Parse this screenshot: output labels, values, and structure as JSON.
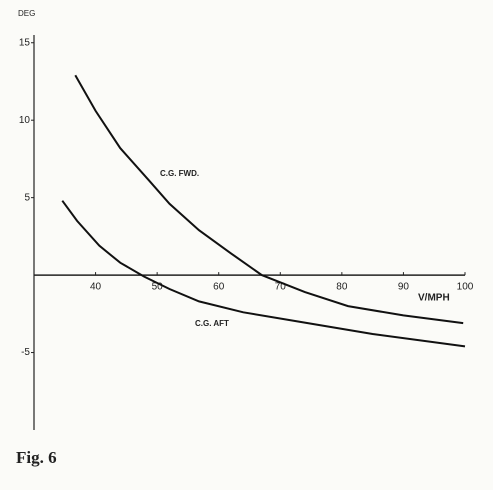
{
  "chart_data": {
    "type": "line",
    "y_label": "DEG",
    "x_label": "V/MPH",
    "annotations": [
      "C.G. FWD.",
      "C.G. AFT"
    ],
    "caption": "Fig. 6",
    "xlim": [
      30,
      100
    ],
    "ylim": [
      -10,
      15.5
    ],
    "xticks": [
      40,
      50,
      60,
      70,
      80,
      90,
      100
    ],
    "yticks": [
      -5,
      5,
      10,
      15
    ],
    "series": [
      {
        "name": "C.G. FWD.",
        "color": "#111111",
        "x": [
          36.7,
          40,
          44,
          48.7,
          52,
          56.8,
          62,
          67,
          74,
          81,
          90,
          99.7
        ],
        "values": [
          12.9,
          10.6,
          8.2,
          6.1,
          4.6,
          2.9,
          1.4,
          0,
          -1.1,
          -2,
          -2.6,
          -3.1
        ]
      },
      {
        "name": "C.G. AFT",
        "color": "#111111",
        "x": [
          34.6,
          37,
          40.6,
          44,
          47.9,
          52,
          56.8,
          64,
          73,
          85,
          100
        ],
        "values": [
          4.8,
          3.5,
          1.9,
          0.8,
          -0.1,
          -0.9,
          -1.7,
          -2.4,
          -3,
          -3.8,
          -4.6
        ]
      }
    ]
  }
}
